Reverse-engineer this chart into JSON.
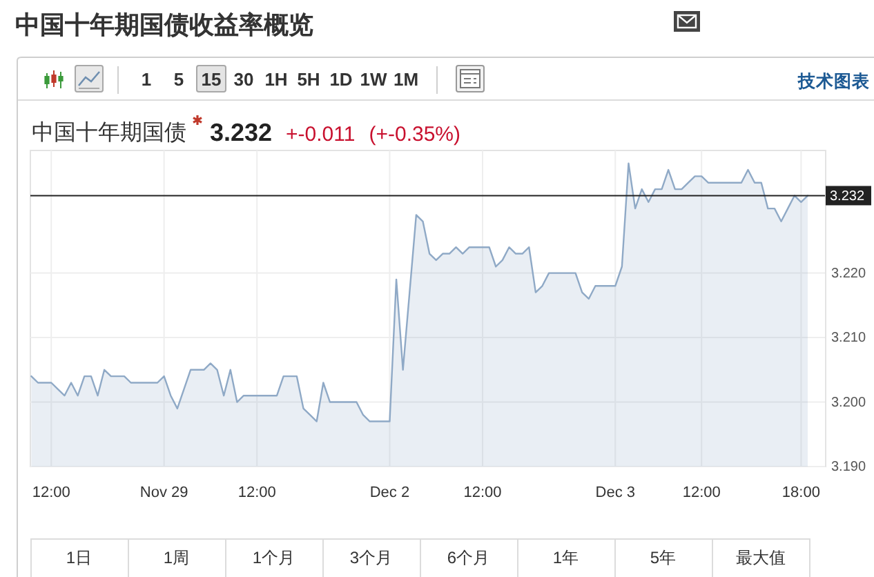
{
  "chart_data": {
    "type": "area",
    "title": "中国十年期国债收益率概览",
    "subtitle": "中国十年期国债",
    "categories": [
      null,
      null,
      null,
      "12:00",
      null,
      null,
      null,
      null,
      null,
      null,
      null,
      null,
      null,
      null,
      null,
      null,
      null,
      null,
      null,
      null,
      "Nov 29",
      null,
      null,
      null,
      null,
      null,
      null,
      null,
      null,
      null,
      null,
      null,
      null,
      null,
      "12:00",
      null,
      null,
      null,
      null,
      null,
      null,
      null,
      null,
      null,
      null,
      null,
      null,
      null,
      null,
      null,
      null,
      null,
      null,
      null,
      "Dec 2",
      null,
      null,
      null,
      null,
      null,
      null,
      null,
      null,
      null,
      null,
      null,
      null,
      null,
      "12:00",
      null,
      null,
      null,
      null,
      null,
      null,
      null,
      null,
      null,
      null,
      null,
      null,
      null,
      null,
      null,
      null,
      null,
      null,
      null,
      "Dec 3",
      null,
      null,
      null,
      null,
      null,
      null,
      null,
      null,
      null,
      null,
      null,
      null,
      "12:00",
      null,
      null,
      null,
      null,
      null,
      null,
      null,
      null,
      null,
      null,
      null,
      null,
      null,
      null,
      "18:00",
      null
    ],
    "values": [
      3.204,
      3.203,
      3.203,
      3.203,
      3.202,
      3.201,
      3.203,
      3.201,
      3.204,
      3.204,
      3.201,
      3.205,
      3.204,
      3.204,
      3.204,
      3.203,
      3.203,
      3.203,
      3.203,
      3.203,
      3.204,
      3.201,
      3.199,
      3.202,
      3.205,
      3.205,
      3.205,
      3.206,
      3.205,
      3.201,
      3.205,
      3.2,
      3.201,
      3.201,
      3.201,
      3.201,
      3.201,
      3.201,
      3.204,
      3.204,
      3.204,
      3.199,
      3.198,
      3.197,
      3.203,
      3.2,
      3.2,
      3.2,
      3.2,
      3.2,
      3.198,
      3.197,
      3.197,
      3.197,
      3.197,
      3.219,
      3.205,
      3.217,
      3.229,
      3.228,
      3.223,
      3.222,
      3.223,
      3.223,
      3.224,
      3.223,
      3.224,
      3.224,
      3.224,
      3.224,
      3.221,
      3.222,
      3.224,
      3.223,
      3.223,
      3.224,
      3.217,
      3.218,
      3.22,
      3.22,
      3.22,
      3.22,
      3.22,
      3.217,
      3.216,
      3.218,
      3.218,
      3.218,
      3.218,
      3.221,
      3.237,
      3.23,
      3.233,
      3.231,
      3.233,
      3.233,
      3.236,
      3.233,
      3.233,
      3.234,
      3.235,
      3.235,
      3.234,
      3.234,
      3.234,
      3.234,
      3.234,
      3.234,
      3.236,
      3.234,
      3.234,
      3.23,
      3.23,
      3.228,
      3.23,
      3.232,
      3.231,
      3.232
    ],
    "color": "#8fa9c6",
    "ylim": [
      3.19,
      3.239
    ],
    "yticks": [
      {
        "value": 3.19,
        "label": "3.190"
      },
      {
        "value": 3.2,
        "label": "3.200"
      },
      {
        "value": 3.21,
        "label": "3.210"
      },
      {
        "value": 3.22,
        "label": "3.220"
      }
    ],
    "grid": true,
    "ref_lines": [
      {
        "axis": "y",
        "value": 3.232,
        "label": "3.232",
        "color": "#222222"
      }
    ],
    "annotations": [
      "3.232",
      "+-0.011",
      "(+-0.35%)",
      "1",
      "5",
      "15",
      "30",
      "1H",
      "5H",
      "1D",
      "1W",
      "1M",
      "技术图表",
      "1日",
      "1周",
      "1个月",
      "3个月",
      "6个月",
      "1年",
      "5年",
      "最大值"
    ]
  }
}
